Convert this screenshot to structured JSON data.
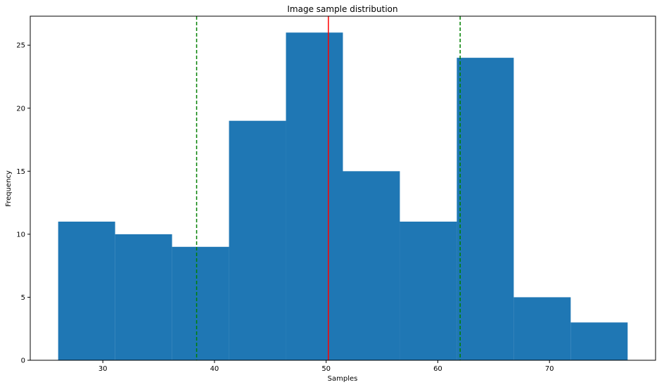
{
  "chart_data": {
    "type": "bar",
    "title": "Image sample distribution",
    "xlabel": "Samples",
    "ylabel": "Frequency",
    "xlim": [
      23.5,
      79.5
    ],
    "ylim": [
      0,
      27.3
    ],
    "x_ticks": [
      30,
      40,
      50,
      60,
      70
    ],
    "y_ticks": [
      0,
      5,
      10,
      15,
      20,
      25
    ],
    "grid": false,
    "bins": [
      {
        "start": 26.0,
        "end": 31.1,
        "count": 11
      },
      {
        "start": 31.1,
        "end": 36.2,
        "count": 10
      },
      {
        "start": 36.2,
        "end": 41.3,
        "count": 9
      },
      {
        "start": 41.3,
        "end": 46.4,
        "count": 19
      },
      {
        "start": 46.4,
        "end": 51.5,
        "count": 26
      },
      {
        "start": 51.5,
        "end": 56.6,
        "count": 15
      },
      {
        "start": 56.6,
        "end": 61.7,
        "count": 11
      },
      {
        "start": 61.7,
        "end": 66.8,
        "count": 24
      },
      {
        "start": 66.8,
        "end": 71.9,
        "count": 5
      },
      {
        "start": 71.9,
        "end": 77.0,
        "count": 3
      }
    ],
    "reference_lines": [
      {
        "x": 50.2,
        "color": "#ff0000",
        "style": "solid"
      },
      {
        "x": 38.4,
        "color": "#008000",
        "style": "dashed"
      },
      {
        "x": 62.0,
        "color": "#008000",
        "style": "dashed"
      }
    ],
    "bar_color": "#1f77b4"
  }
}
